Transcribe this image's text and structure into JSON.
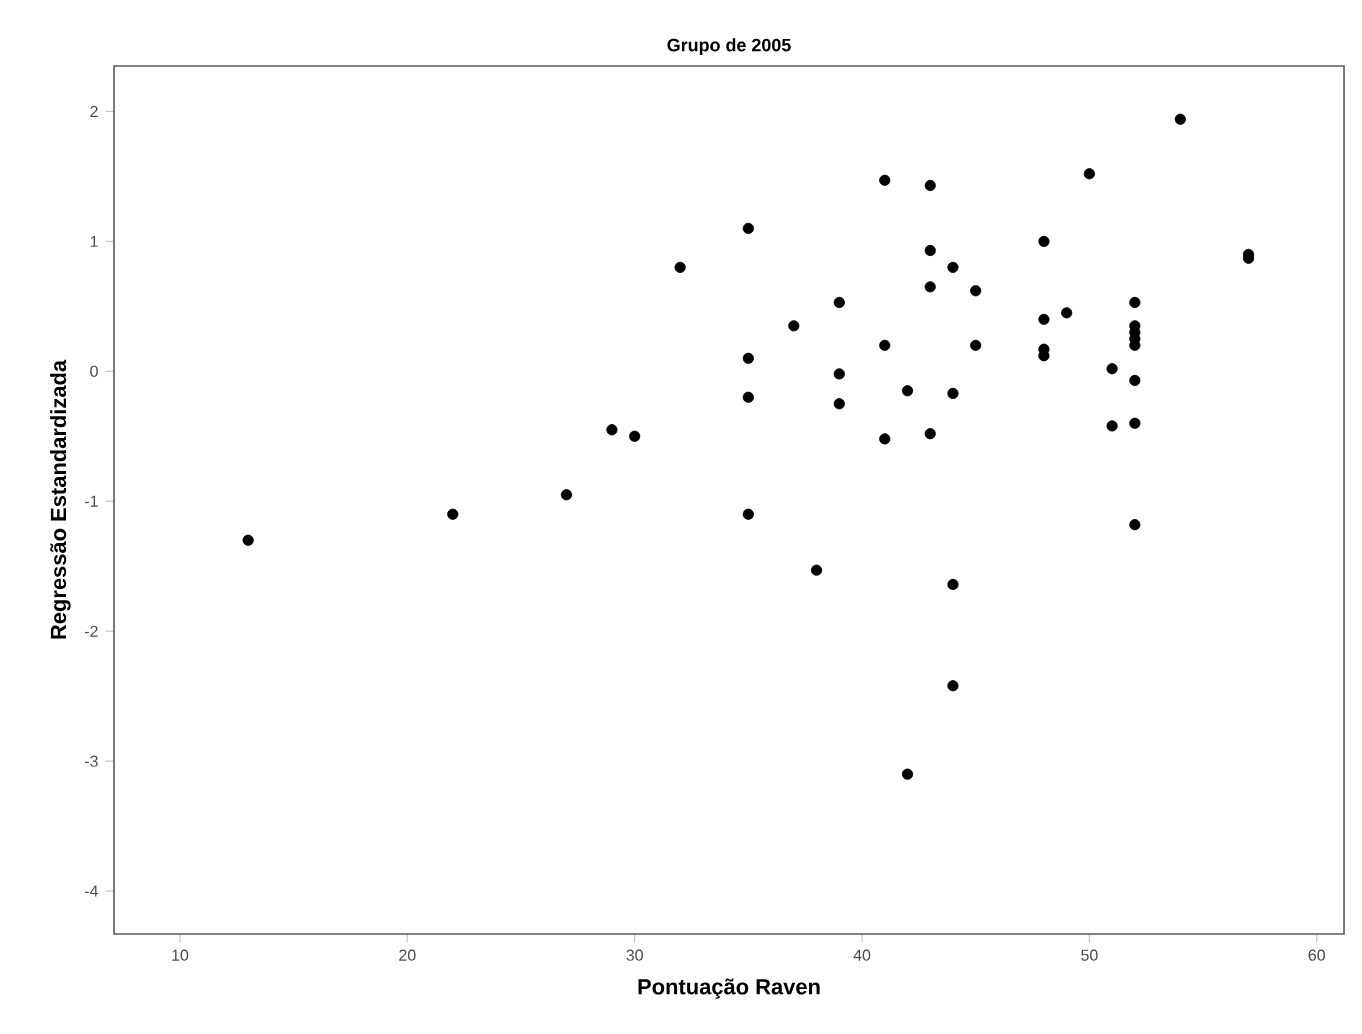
{
  "chart_data": {
    "type": "scatter",
    "title": "Grupo de 2005",
    "xlabel": "Pontuação Raven",
    "ylabel": "Regressão Estandardizada",
    "xlim": [
      7.1,
      61.2
    ],
    "ylim": [
      -4.33,
      2.35
    ],
    "xticks": [
      10,
      20,
      30,
      40,
      50,
      60
    ],
    "yticks": [
      -4,
      -3,
      -2,
      -1,
      0,
      1,
      2
    ],
    "marker": "circle",
    "series": [
      {
        "color": "#000000",
        "x": [
          13,
          22,
          27,
          29,
          30,
          32,
          35,
          35,
          35,
          35,
          37,
          38,
          39,
          39,
          39,
          41,
          41,
          41,
          42,
          42,
          43,
          43,
          43,
          43,
          44,
          44,
          44,
          44,
          45,
          45,
          48,
          48,
          48,
          48,
          49,
          50,
          51,
          51,
          52,
          52,
          52,
          52,
          52,
          52,
          52,
          52,
          54,
          57,
          57
        ],
        "values": [
          -1.3,
          -1.1,
          -0.95,
          -0.45,
          -0.5,
          0.8,
          1.1,
          0.1,
          -0.2,
          -1.1,
          0.35,
          -1.53,
          0.53,
          -0.02,
          -0.25,
          1.47,
          0.2,
          -0.52,
          -0.15,
          -3.1,
          1.43,
          0.93,
          0.65,
          -0.48,
          0.8,
          -0.17,
          -1.64,
          -2.42,
          0.62,
          0.2,
          1.0,
          0.4,
          0.17,
          0.12,
          0.45,
          1.52,
          0.02,
          -0.42,
          0.53,
          0.35,
          0.3,
          0.25,
          0.2,
          -0.07,
          -0.4,
          -1.18,
          1.94,
          0.9,
          0.87
        ]
      }
    ]
  }
}
